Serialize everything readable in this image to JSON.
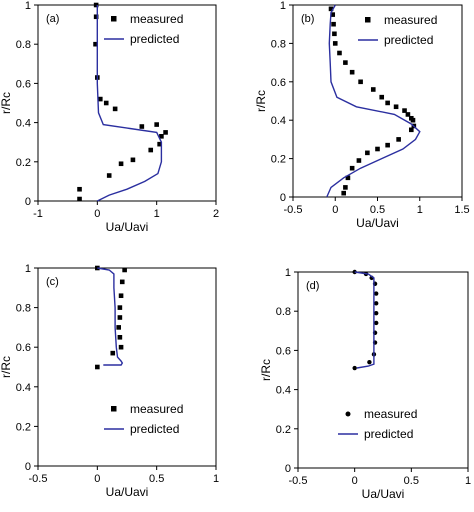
{
  "chart_data": [
    {
      "type": "scatter",
      "panel_label": "(a)",
      "xlabel": "Ua/Uavi",
      "ylabel": "r/Rc",
      "xlim": [
        -1,
        2
      ],
      "ylim": [
        0,
        1
      ],
      "xticks": [
        "-1",
        "0",
        "1",
        "2"
      ],
      "yticks": [
        "0",
        "0.2",
        "0.4",
        "0.6",
        "0.8",
        "1"
      ],
      "legend_position": "top-right",
      "grid": false,
      "series": [
        {
          "name": "measured",
          "marker": "square",
          "points": [
            [
              -0.02,
              1.0
            ],
            [
              -0.02,
              0.94
            ],
            [
              -0.03,
              0.8
            ],
            [
              0.0,
              0.63
            ],
            [
              0.05,
              0.52
            ],
            [
              0.15,
              0.5
            ],
            [
              0.3,
              0.47
            ],
            [
              0.75,
              0.38
            ],
            [
              1.0,
              0.39
            ],
            [
              1.15,
              0.35
            ],
            [
              1.08,
              0.33
            ],
            [
              1.05,
              0.29
            ],
            [
              0.9,
              0.26
            ],
            [
              0.6,
              0.21
            ],
            [
              0.4,
              0.19
            ],
            [
              0.2,
              0.13
            ],
            [
              -0.3,
              0.06
            ],
            [
              -0.3,
              0.01
            ]
          ]
        },
        {
          "name": "predicted",
          "type": "line",
          "color": "#2b2fa0",
          "points": [
            [
              0.0,
              1.0
            ],
            [
              0.0,
              0.8
            ],
            [
              0.0,
              0.6
            ],
            [
              0.02,
              0.45
            ],
            [
              0.1,
              0.39
            ],
            [
              0.55,
              0.37
            ],
            [
              1.0,
              0.35
            ],
            [
              1.08,
              0.3
            ],
            [
              1.08,
              0.2
            ],
            [
              1.02,
              0.14
            ],
            [
              0.8,
              0.1
            ],
            [
              0.5,
              0.06
            ],
            [
              0.2,
              0.03
            ],
            [
              0.0,
              0.0
            ]
          ]
        }
      ]
    },
    {
      "type": "scatter",
      "panel_label": "(b)",
      "xlabel": "Ua/Uavi",
      "ylabel": "r/Rc",
      "xlim": [
        -0.5,
        1.5
      ],
      "ylim": [
        0,
        1
      ],
      "xticks": [
        "-0.5",
        "0",
        "0.5",
        "1",
        "1.5"
      ],
      "yticks": [
        "0",
        "0.2",
        "0.4",
        "0.6",
        "0.8",
        "1"
      ],
      "legend_position": "top-right",
      "grid": false,
      "series": [
        {
          "name": "measured",
          "marker": "square",
          "points": [
            [
              -0.05,
              0.98
            ],
            [
              -0.03,
              0.95
            ],
            [
              -0.02,
              0.9
            ],
            [
              -0.01,
              0.85
            ],
            [
              0.0,
              0.8
            ],
            [
              0.05,
              0.75
            ],
            [
              0.12,
              0.7
            ],
            [
              0.2,
              0.65
            ],
            [
              0.3,
              0.6
            ],
            [
              0.45,
              0.56
            ],
            [
              0.55,
              0.52
            ],
            [
              0.62,
              0.49
            ],
            [
              0.72,
              0.47
            ],
            [
              0.82,
              0.45
            ],
            [
              0.86,
              0.43
            ],
            [
              0.9,
              0.41
            ],
            [
              0.92,
              0.4
            ],
            [
              0.93,
              0.37
            ],
            [
              0.9,
              0.35
            ],
            [
              0.75,
              0.3
            ],
            [
              0.62,
              0.27
            ],
            [
              0.5,
              0.25
            ],
            [
              0.38,
              0.23
            ],
            [
              0.28,
              0.19
            ],
            [
              0.2,
              0.15
            ],
            [
              0.15,
              0.1
            ],
            [
              0.12,
              0.05
            ],
            [
              0.1,
              0.02
            ]
          ]
        },
        {
          "name": "predicted",
          "type": "line",
          "color": "#2b2fa0",
          "points": [
            [
              0.0,
              1.0
            ],
            [
              -0.05,
              0.96
            ],
            [
              -0.06,
              0.9
            ],
            [
              -0.07,
              0.8
            ],
            [
              -0.06,
              0.7
            ],
            [
              -0.05,
              0.6
            ],
            [
              0.02,
              0.52
            ],
            [
              0.25,
              0.47
            ],
            [
              0.7,
              0.43
            ],
            [
              0.9,
              0.38
            ],
            [
              1.0,
              0.34
            ],
            [
              0.95,
              0.3
            ],
            [
              0.8,
              0.25
            ],
            [
              0.55,
              0.2
            ],
            [
              0.3,
              0.15
            ],
            [
              0.1,
              0.1
            ],
            [
              -0.05,
              0.05
            ],
            [
              -0.1,
              0.0
            ]
          ]
        }
      ]
    },
    {
      "type": "scatter",
      "panel_label": "(c)",
      "xlabel": "Ua/Uavi",
      "ylabel": "r/Rc",
      "xlim": [
        -0.5,
        1
      ],
      "ylim": [
        0,
        1
      ],
      "xticks": [
        "-0.5",
        "0",
        "0.5",
        "1"
      ],
      "yticks": [
        "0",
        "0.2",
        "0.4",
        "0.6",
        "0.8",
        "1"
      ],
      "legend_position": "bottom-right",
      "grid": false,
      "series": [
        {
          "name": "measured",
          "marker": "square",
          "points": [
            [
              0.0,
              1.0
            ],
            [
              0.23,
              0.99
            ],
            [
              0.21,
              0.93
            ],
            [
              0.2,
              0.86
            ],
            [
              0.19,
              0.8
            ],
            [
              0.19,
              0.75
            ],
            [
              0.18,
              0.7
            ],
            [
              0.19,
              0.65
            ],
            [
              0.2,
              0.6
            ],
            [
              0.13,
              0.57
            ],
            [
              0.0,
              0.5
            ]
          ]
        },
        {
          "name": "predicted",
          "type": "line",
          "color": "#2b2fa0",
          "points": [
            [
              0.0,
              1.0
            ],
            [
              0.1,
              0.99
            ],
            [
              0.14,
              0.97
            ],
            [
              0.14,
              0.9
            ],
            [
              0.15,
              0.8
            ],
            [
              0.15,
              0.7
            ],
            [
              0.16,
              0.6
            ],
            [
              0.17,
              0.55
            ],
            [
              0.2,
              0.53
            ],
            [
              0.21,
              0.52
            ],
            [
              0.2,
              0.51
            ],
            [
              0.05,
              0.51
            ]
          ]
        }
      ]
    },
    {
      "type": "scatter",
      "panel_label": "(d)",
      "xlabel": "Ua/Uavi",
      "ylabel": "r/Rc",
      "xlim": [
        -0.5,
        1
      ],
      "ylim": [
        0,
        1
      ],
      "xticks": [
        "-0.5",
        "0",
        "0.5",
        "1"
      ],
      "yticks": [
        "0",
        "0.2",
        "0.4",
        "0.6",
        "0.8",
        "1"
      ],
      "legend_position": "bottom-right",
      "grid": false,
      "series": [
        {
          "name": "measured",
          "marker": "circle",
          "points": [
            [
              0.0,
              1.0
            ],
            [
              0.1,
              0.99
            ],
            [
              0.15,
              0.97
            ],
            [
              0.18,
              0.94
            ],
            [
              0.19,
              0.89
            ],
            [
              0.19,
              0.84
            ],
            [
              0.19,
              0.79
            ],
            [
              0.19,
              0.74
            ],
            [
              0.18,
              0.69
            ],
            [
              0.18,
              0.64
            ],
            [
              0.17,
              0.58
            ],
            [
              0.13,
              0.54
            ],
            [
              0.0,
              0.51
            ]
          ]
        },
        {
          "name": "predicted",
          "type": "line",
          "color": "#2b2fa0",
          "points": [
            [
              0.0,
              1.0
            ],
            [
              0.12,
              0.99
            ],
            [
              0.17,
              0.97
            ],
            [
              0.17,
              0.9
            ],
            [
              0.17,
              0.8
            ],
            [
              0.17,
              0.7
            ],
            [
              0.17,
              0.6
            ],
            [
              0.17,
              0.55
            ],
            [
              0.17,
              0.53
            ],
            [
              0.12,
              0.52
            ],
            [
              0.02,
              0.51
            ]
          ]
        }
      ]
    }
  ]
}
